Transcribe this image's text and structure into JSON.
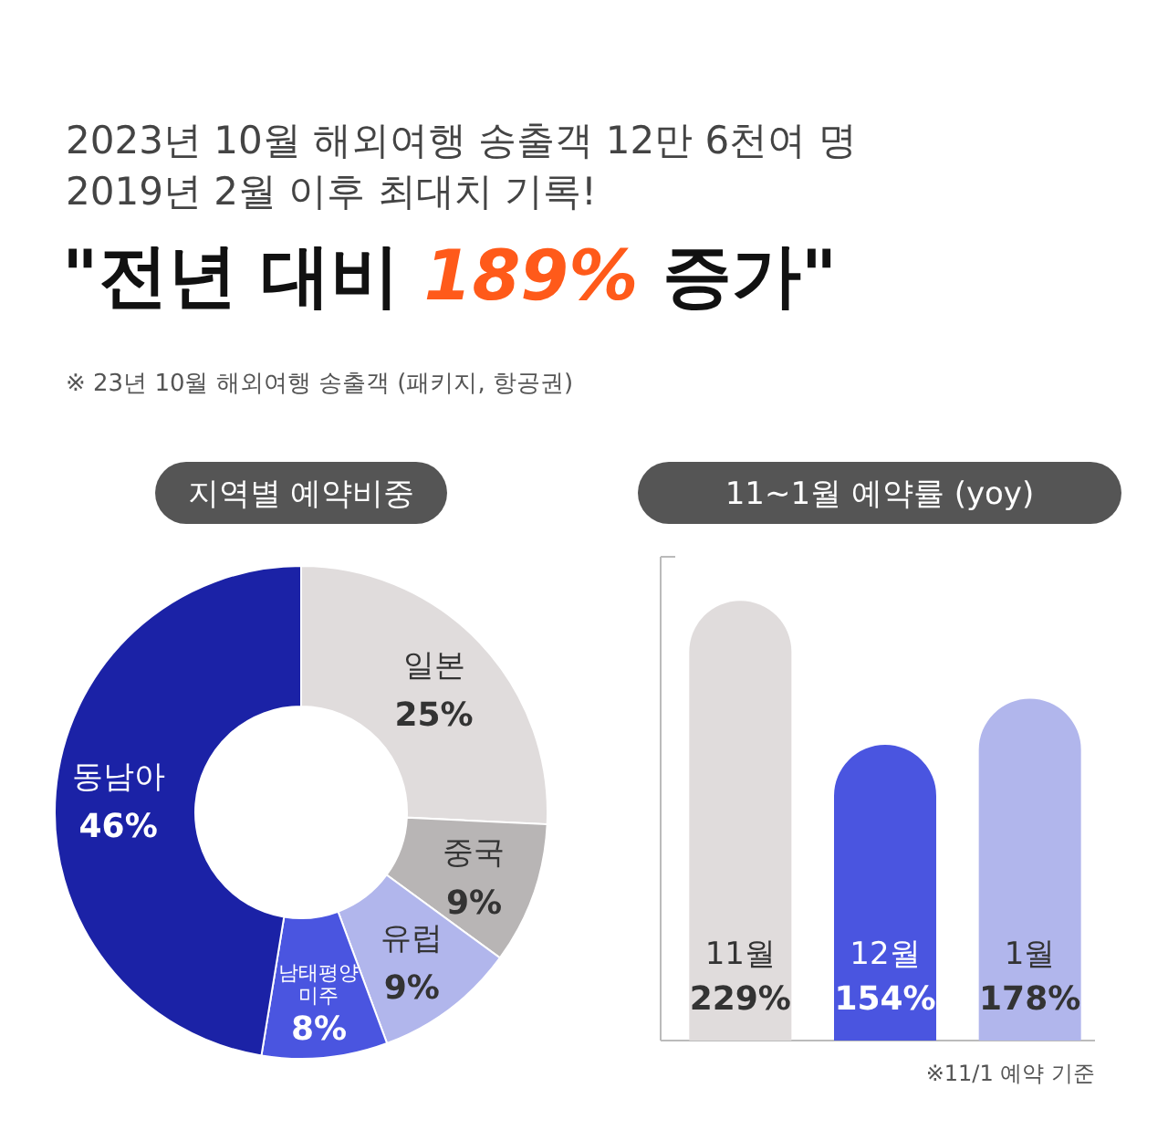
{
  "chart_data": [
    {
      "type": "other",
      "title": "\"전년 대비 189% 증가\"",
      "subtitle": "2023년 10월 해외여행 송출객 12만 6천여 명\n2019년 2월 이후 최대치 기록!",
      "annotations": [
        "※ 23년 10월 해외여행 송출객 (패키지, 항공권)"
      ]
    },
    {
      "type": "donut",
      "title": "지역별 예약비중",
      "categories": [
        "일본",
        "중국",
        "유럽",
        "남태평양 미주",
        "동남아"
      ],
      "values": [
        25,
        9,
        9,
        8,
        46
      ],
      "colors": [
        "#e0dcdc",
        "#b8b5b5",
        "#b1b6ec",
        "#4a55e0",
        "#1b22a6"
      ],
      "value_labels": [
        "25%",
        "9%",
        "9%",
        "8%",
        "46%"
      ]
    },
    {
      "type": "bar",
      "title": "11~1월 예약률 (yoy)",
      "categories": [
        "11월",
        "12월",
        "1월"
      ],
      "values": [
        229,
        154,
        178
      ],
      "colors": [
        "#e0dcdc",
        "#4a55e0",
        "#b1b6ec"
      ],
      "value_labels": [
        "229%",
        "154%",
        "178%"
      ],
      "annotations": [
        "※11/1 예약 기준"
      ]
    }
  ]
}
